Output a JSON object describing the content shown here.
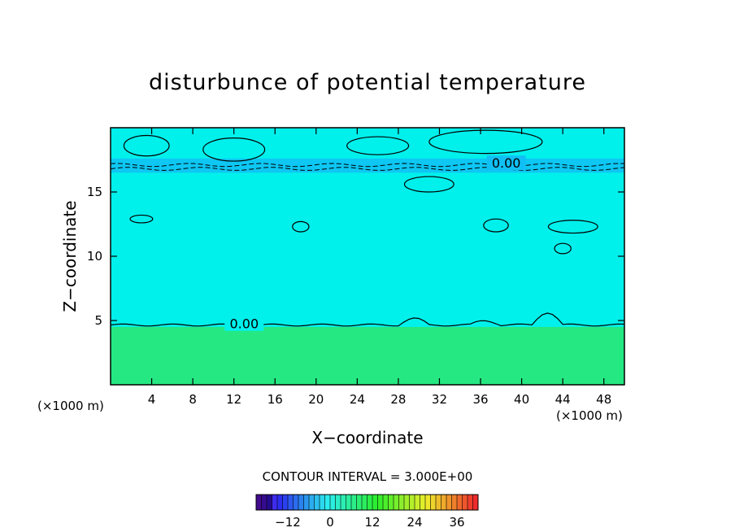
{
  "chart_data": {
    "type": "heatmap",
    "title": "disturbunce of potential temperature",
    "xlabel": "X−coordinate",
    "ylabel": "Z−coordinate",
    "x_unit": "(×1000 m)",
    "y_unit": "(×1000 m)",
    "xlim": [
      0,
      50
    ],
    "ylim": [
      0,
      20
    ],
    "xticks": [
      "4",
      "8",
      "12",
      "16",
      "20",
      "24",
      "28",
      "32",
      "36",
      "40",
      "44",
      "48"
    ],
    "yticks": [
      "5",
      "10",
      "15"
    ],
    "contour_labels": [
      {
        "text": "0.00",
        "x": 38.5,
        "y": 17.2
      },
      {
        "text": "0.00",
        "x": 13.0,
        "y": 4.7
      }
    ],
    "contour_interval": "CONTOUR INTERVAL = 3.000E+00",
    "colorbar": {
      "ticks": [
        "−12",
        "0",
        "12",
        "24",
        "36"
      ],
      "tick_values": [
        -12,
        0,
        12,
        24,
        36
      ],
      "range": [
        -21,
        42
      ]
    },
    "fields": {
      "lower_layer": {
        "z_top": 4.5,
        "value": 3
      },
      "upper_layer": {
        "value": -1
      },
      "cold_band": {
        "z": [
          16.5,
          17.6
        ],
        "value": -3
      }
    },
    "colors": {
      "lower_layer": "#25e882",
      "upper_layer": "#00f0ec",
      "cold_band": "#10c0f4"
    }
  }
}
